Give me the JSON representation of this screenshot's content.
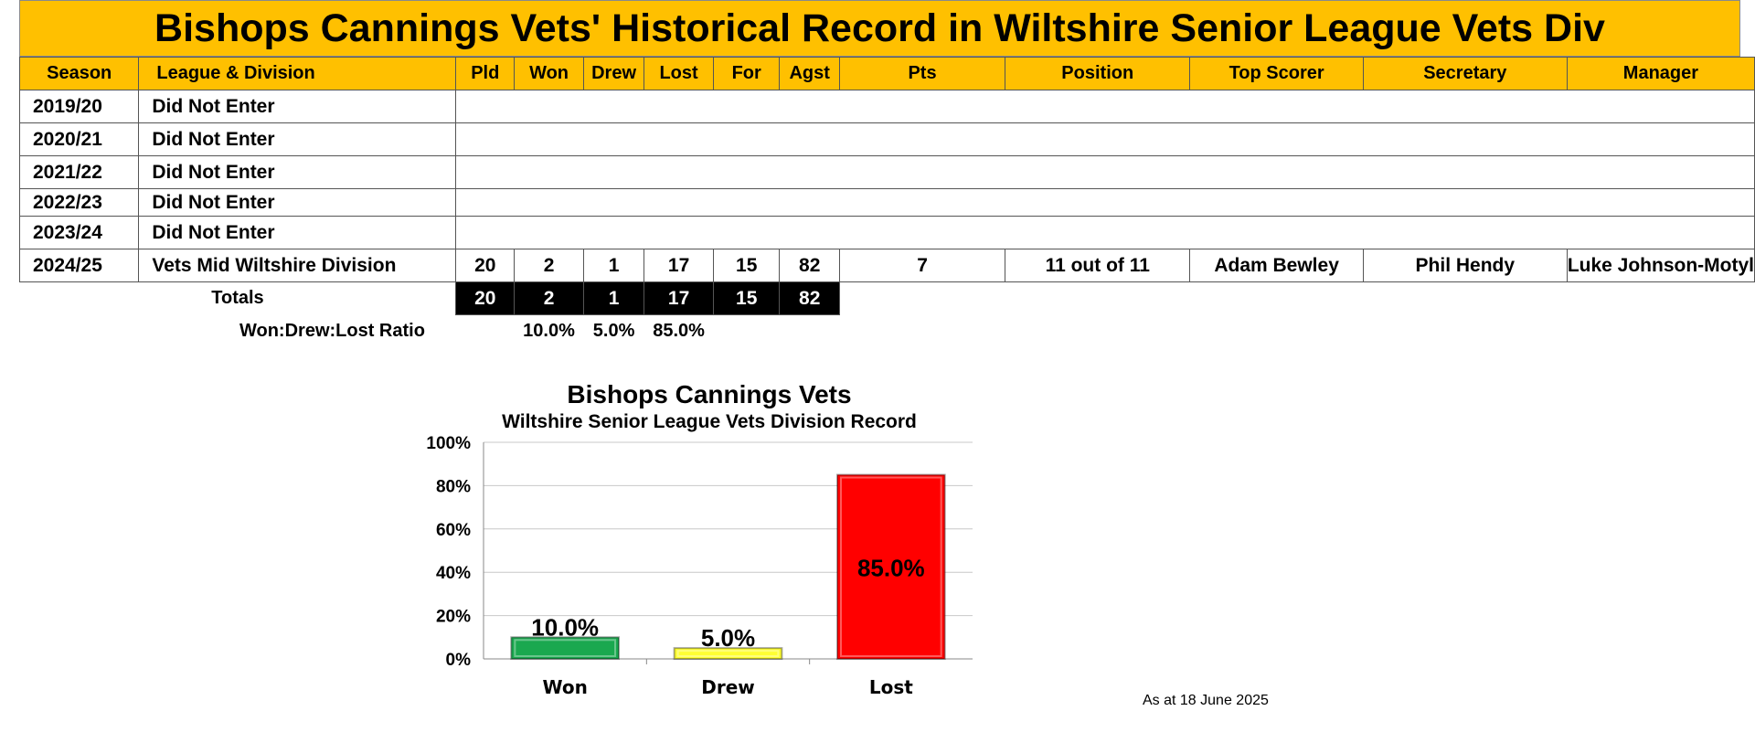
{
  "title": "Bishops Cannings Vets' Historical Record in Wiltshire Senior League Vets Div",
  "headers": {
    "season": "Season",
    "league": "League & Division",
    "pld": "Pld",
    "won": "Won",
    "drew": "Drew",
    "lost": "Lost",
    "for": "For",
    "agst": "Agst",
    "pts": "Pts",
    "position": "Position",
    "top_scorer": "Top Scorer",
    "secretary": "Secretary",
    "manager": "Manager"
  },
  "rows": [
    {
      "season": "2019/20",
      "league": "Did Not Enter"
    },
    {
      "season": "2020/21",
      "league": "Did Not Enter"
    },
    {
      "season": "2021/22",
      "league": "Did Not Enter"
    },
    {
      "season": "2022/23",
      "league": "Did Not Enter"
    },
    {
      "season": "2023/24",
      "league": "Did Not Enter"
    },
    {
      "season": "2024/25",
      "league": "Vets Mid Wiltshire Division",
      "pld": "20",
      "won": "2",
      "drew": "1",
      "lost": "17",
      "for": "15",
      "agst": "82",
      "pts": "7",
      "position": "11 out of 11",
      "top_scorer": "Adam Bewley",
      "secretary": "Phil Hendy",
      "manager": "Luke Johnson-Motyl"
    }
  ],
  "totals": {
    "label": "Totals",
    "pld": "20",
    "won": "2",
    "drew": "1",
    "lost": "17",
    "for": "15",
    "agst": "82"
  },
  "ratio": {
    "label": "Won:Drew:Lost Ratio",
    "won": "10.0%",
    "drew": "5.0%",
    "lost": "85.0%"
  },
  "chart_data": {
    "type": "bar",
    "title": "Bishops Cannings Vets",
    "subtitle": "Wiltshire Senior League Vets Division Record",
    "categories": [
      "Won",
      "Drew",
      "Lost"
    ],
    "values": [
      10.0,
      5.0,
      85.0
    ],
    "data_labels": [
      "10.0%",
      "5.0%",
      "85.0%"
    ],
    "colors": [
      "#1aa84f",
      "#ffff33",
      "#ff0000"
    ],
    "ylim": [
      0,
      100
    ],
    "yticks": [
      "0%",
      "20%",
      "40%",
      "60%",
      "80%",
      "100%"
    ],
    "grid": true,
    "legend": "none"
  },
  "footer": "As at 18 June 2025"
}
